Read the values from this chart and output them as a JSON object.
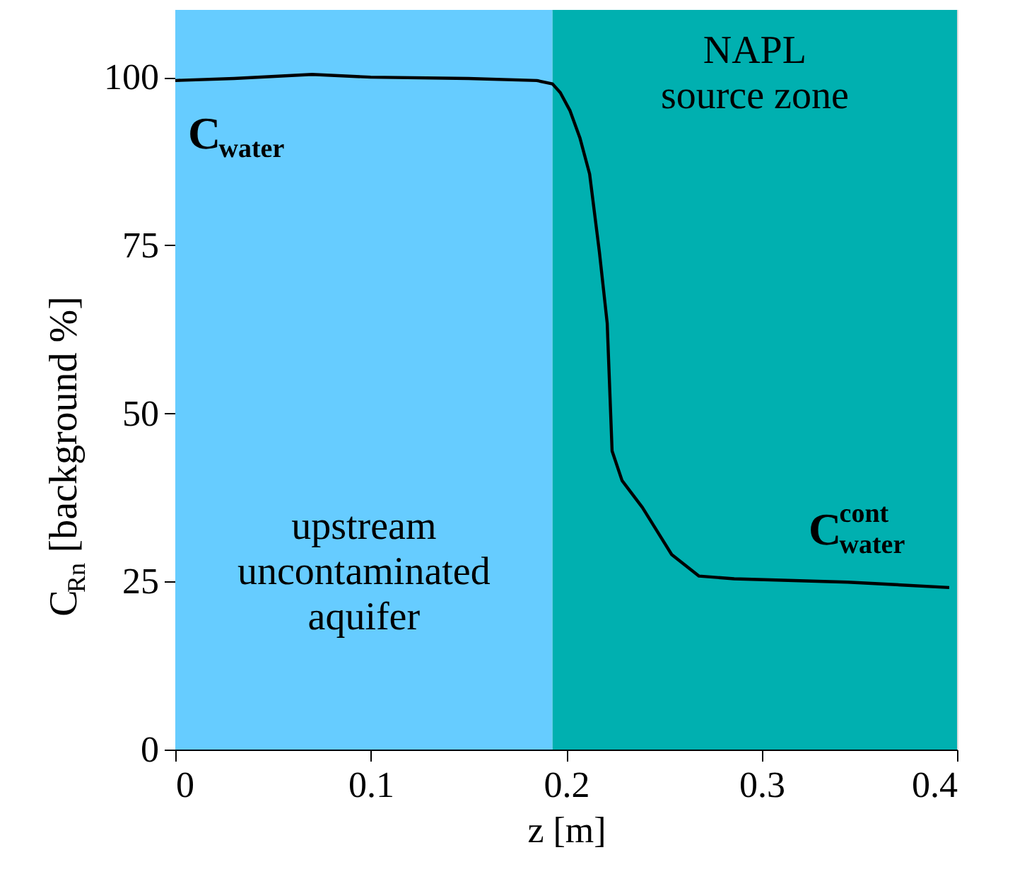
{
  "chart_data": {
    "type": "line",
    "xlabel": "z [m]",
    "ylabel": "C$_{Rn}$ [background %]",
    "xlim": [
      0,
      0.4
    ],
    "ylim": [
      0,
      110
    ],
    "xticks": [
      0,
      0.1,
      0.2,
      0.3,
      0.4
    ],
    "yticks": [
      0,
      25,
      50,
      75,
      100
    ],
    "grid": false,
    "marker": "none",
    "line_style": "solid",
    "series": [
      {
        "color": "#000000",
        "x": [
          0,
          0.03,
          0.07,
          0.1,
          0.15,
          0.185,
          0.193,
          0.197,
          0.202,
          0.207,
          0.212,
          0.217,
          0.221,
          0.2235,
          0.2286,
          0.239,
          0.254,
          0.268,
          0.286,
          0.344,
          0.396
        ],
        "values": [
          99.5,
          99.8,
          100.4,
          100,
          99.8,
          99.5,
          99,
          97.7,
          95,
          91,
          85.6,
          74,
          63.4,
          44.4,
          40,
          36,
          29,
          25.8,
          25.4,
          24.9,
          24.1
        ]
      }
    ],
    "bands": [
      {
        "axis": "x",
        "from": 0,
        "to": 0.193,
        "label": "upstream\nuncontaminated\naquifer",
        "color": "#66ccff"
      },
      {
        "axis": "x",
        "from": 0.193,
        "to": 0.4,
        "label": "NAPL\nsource zone",
        "color": "#00b0b0"
      }
    ],
    "annotations": [
      "C$_{water}$",
      "C$^{cont}$$_{water}$"
    ]
  }
}
